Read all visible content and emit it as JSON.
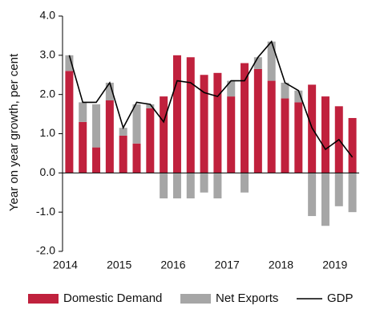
{
  "chart_data": {
    "type": "bar",
    "ylabel": "Year on year growth, per cent",
    "categories": [
      "2014",
      null,
      null,
      null,
      "2015",
      null,
      null,
      null,
      "2016",
      null,
      null,
      null,
      "2017",
      null,
      null,
      null,
      "2018",
      null,
      null,
      null,
      "2019",
      null
    ],
    "series": [
      {
        "name": "Domestic Demand",
        "color": "#c0213d",
        "values": [
          2.6,
          1.3,
          0.65,
          1.85,
          0.95,
          0.75,
          1.65,
          1.95,
          3.0,
          2.95,
          2.5,
          2.55,
          1.95,
          2.8,
          2.65,
          2.35,
          1.9,
          1.8,
          2.25,
          1.95,
          1.7,
          1.4
        ]
      },
      {
        "name": "Net Exports",
        "color": "#a6a6a6",
        "values": [
          0.4,
          0.5,
          1.1,
          0.45,
          0.2,
          1.0,
          0.1,
          -0.65,
          -0.65,
          -0.65,
          -0.5,
          -0.65,
          0.4,
          -0.5,
          0.3,
          1.0,
          0.4,
          0.3,
          -1.1,
          -1.35,
          -0.85,
          -1.0
        ]
      },
      {
        "name": "GDP",
        "type": "line",
        "color": "#000000",
        "values": [
          3.0,
          1.8,
          1.8,
          2.3,
          1.15,
          1.8,
          1.75,
          1.3,
          2.35,
          2.3,
          2.05,
          1.95,
          2.35,
          2.35,
          2.95,
          3.35,
          2.3,
          2.1,
          1.15,
          0.6,
          0.85,
          0.4
        ]
      }
    ],
    "ylim": [
      -2,
      4
    ],
    "yticks": [
      {
        "value": -2,
        "label": "-2.0"
      },
      {
        "value": -1,
        "label": "-1.0"
      },
      {
        "value": 0,
        "label": "0.0"
      },
      {
        "value": 1,
        "label": "1.0"
      },
      {
        "value": 2,
        "label": "2.0"
      },
      {
        "value": 3,
        "label": "3.0"
      },
      {
        "value": 4,
        "label": "4.0"
      }
    ],
    "legend": "bottom"
  }
}
